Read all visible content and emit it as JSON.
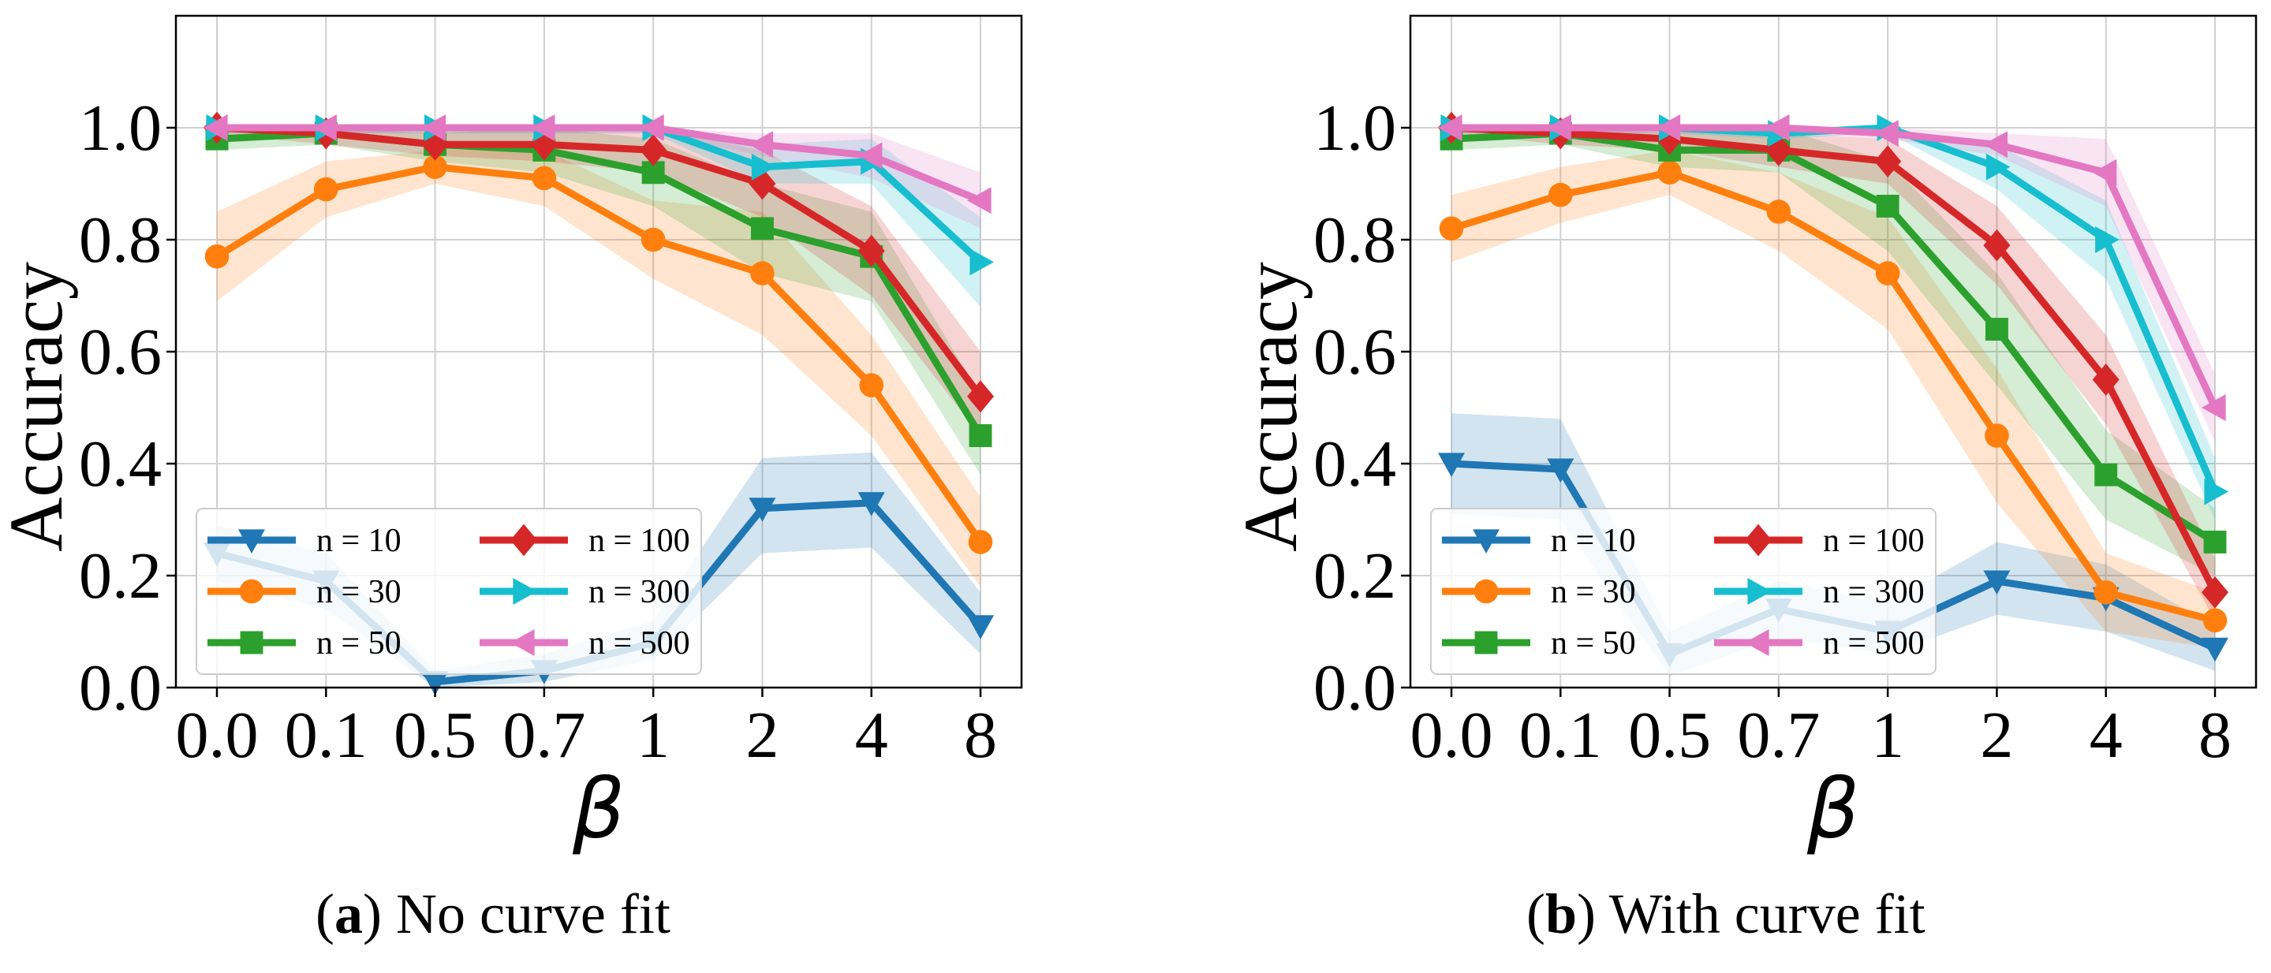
{
  "chart_data": [
    {
      "type": "line",
      "panel_label": "a",
      "caption": "No curve fit",
      "xlabel": "β",
      "ylabel": "Accuracy",
      "categories": [
        "0.0",
        "0.1",
        "0.5",
        "0.7",
        "1",
        "2",
        "4",
        "8"
      ],
      "ylim": [
        0,
        1.2
      ],
      "yticks": [
        "0.0",
        "0.2",
        "0.4",
        "0.6",
        "0.8",
        "1.0"
      ],
      "grid": true,
      "legend_position": "bottom-left",
      "series": [
        {
          "name": "n = 10",
          "color": "#1f77b4",
          "marker": "triangle-down",
          "values": [
            0.24,
            0.19,
            0.01,
            0.03,
            0.08,
            0.32,
            0.33,
            0.11
          ],
          "lower": [
            0.19,
            0.14,
            0.0,
            0.01,
            0.05,
            0.24,
            0.25,
            0.06
          ],
          "upper": [
            0.29,
            0.24,
            0.03,
            0.06,
            0.12,
            0.41,
            0.42,
            0.17
          ]
        },
        {
          "name": "n = 30",
          "color": "#ff7f0e",
          "marker": "circle",
          "values": [
            0.77,
            0.89,
            0.93,
            0.91,
            0.8,
            0.74,
            0.54,
            0.26
          ],
          "lower": [
            0.69,
            0.84,
            0.9,
            0.86,
            0.73,
            0.63,
            0.45,
            0.18
          ],
          "upper": [
            0.85,
            0.94,
            0.96,
            0.96,
            0.87,
            0.85,
            0.63,
            0.34
          ]
        },
        {
          "name": "n = 50",
          "color": "#2ca02c",
          "marker": "square",
          "values": [
            0.98,
            0.99,
            0.97,
            0.96,
            0.92,
            0.82,
            0.77,
            0.45
          ],
          "lower": [
            0.96,
            0.97,
            0.94,
            0.92,
            0.86,
            0.74,
            0.69,
            0.38
          ],
          "upper": [
            1.0,
            1.0,
            1.0,
            1.0,
            0.98,
            0.9,
            0.85,
            0.52
          ]
        },
        {
          "name": "n = 100",
          "color": "#d62728",
          "marker": "diamond",
          "values": [
            1.0,
            0.99,
            0.97,
            0.97,
            0.96,
            0.9,
            0.78,
            0.52
          ],
          "lower": [
            0.99,
            0.97,
            0.95,
            0.94,
            0.92,
            0.84,
            0.7,
            0.45
          ],
          "upper": [
            1.0,
            1.0,
            0.99,
            1.0,
            1.0,
            0.96,
            0.86,
            0.6
          ]
        },
        {
          "name": "n = 300",
          "color": "#17becf",
          "marker": "triangle-right",
          "values": [
            1.0,
            1.0,
            1.0,
            1.0,
            1.0,
            0.93,
            0.94,
            0.76
          ],
          "lower": [
            0.99,
            0.99,
            0.99,
            0.99,
            0.99,
            0.9,
            0.9,
            0.68
          ],
          "upper": [
            1.0,
            1.0,
            1.0,
            1.0,
            1.0,
            0.97,
            0.98,
            0.84
          ]
        },
        {
          "name": "n = 500",
          "color": "#e377c2",
          "marker": "triangle-left",
          "values": [
            1.0,
            1.0,
            1.0,
            1.0,
            1.0,
            0.97,
            0.95,
            0.87
          ],
          "lower": [
            0.99,
            0.99,
            0.99,
            0.99,
            0.99,
            0.95,
            0.91,
            0.82
          ],
          "upper": [
            1.0,
            1.0,
            1.0,
            1.0,
            1.0,
            0.99,
            0.99,
            0.92
          ]
        }
      ]
    },
    {
      "type": "line",
      "panel_label": "b",
      "caption": "With curve fit",
      "xlabel": "β",
      "ylabel": "Accuracy",
      "categories": [
        "0.0",
        "0.1",
        "0.5",
        "0.7",
        "1",
        "2",
        "4",
        "8"
      ],
      "ylim": [
        0,
        1.2
      ],
      "yticks": [
        "0.0",
        "0.2",
        "0.4",
        "0.6",
        "0.8",
        "1.0"
      ],
      "grid": true,
      "legend_position": "bottom-left",
      "series": [
        {
          "name": "n = 10",
          "color": "#1f77b4",
          "marker": "triangle-down",
          "values": [
            0.4,
            0.39,
            0.06,
            0.14,
            0.1,
            0.19,
            0.16,
            0.07
          ],
          "lower": [
            0.31,
            0.3,
            0.02,
            0.09,
            0.06,
            0.13,
            0.1,
            0.03
          ],
          "upper": [
            0.49,
            0.48,
            0.1,
            0.19,
            0.15,
            0.26,
            0.22,
            0.11
          ]
        },
        {
          "name": "n = 30",
          "color": "#ff7f0e",
          "marker": "circle",
          "values": [
            0.82,
            0.88,
            0.92,
            0.85,
            0.74,
            0.45,
            0.17,
            0.12
          ],
          "lower": [
            0.76,
            0.83,
            0.88,
            0.78,
            0.64,
            0.33,
            0.1,
            0.07
          ],
          "upper": [
            0.88,
            0.93,
            0.96,
            0.92,
            0.84,
            0.57,
            0.24,
            0.17
          ]
        },
        {
          "name": "n = 50",
          "color": "#2ca02c",
          "marker": "square",
          "values": [
            0.98,
            0.99,
            0.96,
            0.96,
            0.86,
            0.64,
            0.38,
            0.26
          ],
          "lower": [
            0.96,
            0.97,
            0.93,
            0.92,
            0.78,
            0.54,
            0.3,
            0.2
          ],
          "upper": [
            1.0,
            1.0,
            0.99,
            1.0,
            0.94,
            0.74,
            0.46,
            0.32
          ]
        },
        {
          "name": "n = 100",
          "color": "#d62728",
          "marker": "diamond",
          "values": [
            1.0,
            0.99,
            0.98,
            0.96,
            0.94,
            0.79,
            0.55,
            0.17
          ],
          "lower": [
            0.99,
            0.97,
            0.96,
            0.93,
            0.9,
            0.72,
            0.47,
            0.12
          ],
          "upper": [
            1.0,
            1.0,
            1.0,
            0.99,
            0.98,
            0.86,
            0.63,
            0.23
          ]
        },
        {
          "name": "n = 300",
          "color": "#17becf",
          "marker": "triangle-right",
          "values": [
            1.0,
            1.0,
            1.0,
            0.99,
            1.0,
            0.93,
            0.8,
            0.35
          ],
          "lower": [
            0.99,
            0.99,
            0.99,
            0.98,
            0.99,
            0.89,
            0.73,
            0.3
          ],
          "upper": [
            1.0,
            1.0,
            1.0,
            1.0,
            1.0,
            0.97,
            0.87,
            0.41
          ]
        },
        {
          "name": "n = 500",
          "color": "#e377c2",
          "marker": "triangle-left",
          "values": [
            1.0,
            1.0,
            1.0,
            1.0,
            0.99,
            0.97,
            0.92,
            0.5
          ],
          "lower": [
            0.99,
            0.99,
            0.99,
            0.99,
            0.98,
            0.95,
            0.86,
            0.44
          ],
          "upper": [
            1.0,
            1.0,
            1.0,
            1.0,
            1.0,
            0.99,
            0.98,
            0.56
          ]
        }
      ]
    }
  ]
}
